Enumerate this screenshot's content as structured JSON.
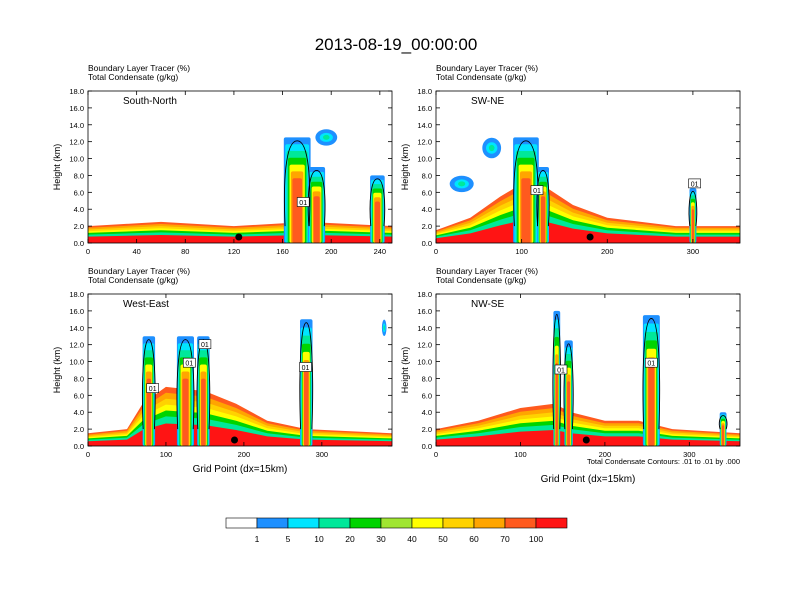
{
  "title": "2013-08-19_00:00:00",
  "footnote": "Total Condensate Contours: .01 to .01 by .000",
  "colors": [
    "#ffffff",
    "#1e90ff",
    "#00e5ff",
    "#00e89a",
    "#00d400",
    "#a0e632",
    "#ffff00",
    "#ffd200",
    "#ffa500",
    "#ff5a1e",
    "#ff1414"
  ],
  "colorbar": {
    "labels": [
      "1",
      "5",
      "10",
      "20",
      "30",
      "40",
      "50",
      "60",
      "70",
      "100"
    ]
  },
  "chart_data": [
    {
      "type": "heatmap",
      "label": "South-North",
      "subtitle1": "Boundary Layer Tracer    (%)",
      "subtitle2": "Total Condensate    (g/kg)",
      "ylabel": "Height (km)",
      "xlabel": "",
      "xlim": [
        0,
        250
      ],
      "xticks": [
        0,
        40,
        80,
        120,
        160,
        200,
        240
      ],
      "ylim": [
        0,
        18
      ],
      "yticks": [
        "0.0",
        "2.0",
        "4.0",
        "6.0",
        "8.0",
        "10.0",
        "12.0",
        "14.0",
        "16.0",
        "18.0"
      ],
      "contour_labels": [
        {
          "text": "01",
          "x": 177,
          "y": 4.8
        }
      ],
      "marker_x": 124
    },
    {
      "type": "heatmap",
      "label": "SW-NE",
      "subtitle1": "Boundary Layer Tracer    (%)",
      "subtitle2": "Total Condensate    (g/kg)",
      "ylabel": "Height (km)",
      "xlabel": "",
      "xlim": [
        0,
        355
      ],
      "xticks": [
        0,
        100,
        200,
        300
      ],
      "ylim": [
        0,
        18
      ],
      "yticks": [
        "0.0",
        "2.0",
        "4.0",
        "6.0",
        "8.0",
        "10.0",
        "12.0",
        "14.0",
        "16.0",
        "18.0"
      ],
      "contour_labels": [
        {
          "text": "01",
          "x": 302,
          "y": 7.0
        },
        {
          "text": "01",
          "x": 118,
          "y": 6.2
        }
      ],
      "marker_x": 180
    },
    {
      "type": "heatmap",
      "label": "West-East",
      "subtitle1": "Boundary Layer Tracer    (%)",
      "subtitle2": "Total Condensate    (g/kg)",
      "ylabel": "Height (km)",
      "xlabel": "Grid Point (dx=15km)",
      "xlim": [
        0,
        390
      ],
      "xticks": [
        0,
        100,
        200,
        300
      ],
      "ylim": [
        0,
        18
      ],
      "yticks": [
        "0.0",
        "2.0",
        "4.0",
        "6.0",
        "8.0",
        "10.0",
        "12.0",
        "14.0",
        "16.0",
        "18.0"
      ],
      "contour_labels": [
        {
          "text": "01",
          "x": 83,
          "y": 6.8
        },
        {
          "text": "01",
          "x": 130,
          "y": 9.8
        },
        {
          "text": "01",
          "x": 150,
          "y": 12.0
        },
        {
          "text": "01",
          "x": 279,
          "y": 9.3
        }
      ],
      "marker_x": 188
    },
    {
      "type": "heatmap",
      "label": "NW-SE",
      "subtitle1": "Boundary Layer Tracer    (%)",
      "subtitle2": "Total Condensate    (g/kg)",
      "ylabel": "Height (km)",
      "xlabel": "Grid Point (dx=15km)",
      "xlim": [
        0,
        360
      ],
      "xticks": [
        0,
        100,
        200,
        300
      ],
      "ylim": [
        0,
        18
      ],
      "yticks": [
        "0.0",
        "2.0",
        "4.0",
        "6.0",
        "8.0",
        "10.0",
        "12.0",
        "14.0",
        "16.0",
        "18.0"
      ],
      "contour_labels": [
        {
          "text": "01",
          "x": 148,
          "y": 9.0
        },
        {
          "text": "01",
          "x": 255,
          "y": 9.8
        }
      ],
      "marker_x": 178
    }
  ]
}
